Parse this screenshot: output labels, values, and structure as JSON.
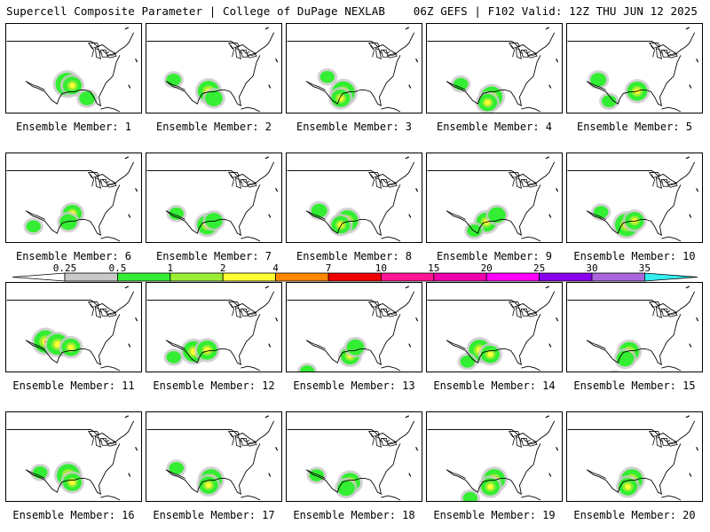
{
  "header": {
    "left": "Supercell Composite Parameter | College of DuPage NEXLAB",
    "right": "06Z GEFS | F102 Valid: 12Z THU JUN 12 2025"
  },
  "panels": [
    {
      "label": "Ensemble Member: 1"
    },
    {
      "label": "Ensemble Member: 2"
    },
    {
      "label": "Ensemble Member: 3"
    },
    {
      "label": "Ensemble Member: 4"
    },
    {
      "label": "Ensemble Member: 5"
    },
    {
      "label": "Ensemble Member: 6"
    },
    {
      "label": "Ensemble Member: 7"
    },
    {
      "label": "Ensemble Member: 8"
    },
    {
      "label": "Ensemble Member: 9"
    },
    {
      "label": "Ensemble Member: 10"
    },
    {
      "label": "Ensemble Member: 11"
    },
    {
      "label": "Ensemble Member: 12"
    },
    {
      "label": "Ensemble Member: 13"
    },
    {
      "label": "Ensemble Member: 14"
    },
    {
      "label": "Ensemble Member: 15"
    },
    {
      "label": "Ensemble Member: 16"
    },
    {
      "label": "Ensemble Member: 17"
    },
    {
      "label": "Ensemble Member: 18"
    },
    {
      "label": "Ensemble Member: 19"
    },
    {
      "label": "Ensemble Member: 20"
    }
  ],
  "colorbar": {
    "ticks": [
      "0.25",
      "0.5",
      "1",
      "2",
      "4",
      "7",
      "10",
      "15",
      "20",
      "25",
      "30",
      "35"
    ],
    "colors": [
      "#c8c8c8",
      "#33ee33",
      "#99ee33",
      "#ffff33",
      "#ff8800",
      "#ee0000",
      "#ff1493",
      "#ee00aa",
      "#ff00ff",
      "#8800ee",
      "#aa66dd",
      "#33eeee"
    ]
  }
}
